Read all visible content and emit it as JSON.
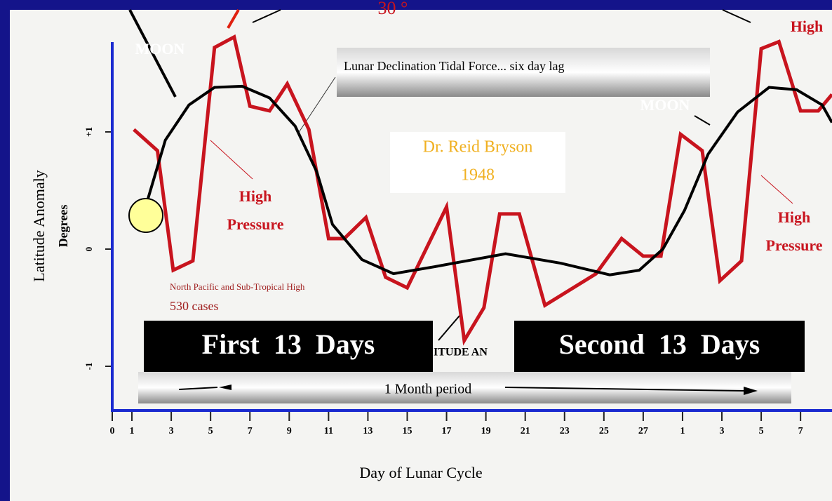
{
  "chart_data": {
    "type": "line",
    "xlabel": "Day of Lunar Cycle",
    "ylabel": "Latitude Anomaly",
    "ylabel2": "Degrees",
    "xlim": [
      0,
      36.6
    ],
    "ylim": [
      -1.4,
      1.85
    ],
    "xticks": [
      0,
      1,
      3,
      5,
      7,
      9,
      11,
      13,
      15,
      17,
      19,
      21,
      23,
      25,
      27,
      {
        "value": 29,
        "label": "1"
      },
      {
        "value": 31,
        "label": "3"
      },
      {
        "value": 33,
        "label": "5"
      },
      {
        "value": 35,
        "label": "7"
      }
    ],
    "yticks": [
      {
        "value": 1,
        "label": "+1"
      },
      0,
      {
        "value": -1,
        "label": "-1"
      }
    ],
    "series": [
      {
        "name": "North Pacific and Sub-Tropical High",
        "color": "#c8141e",
        "x": [
          1.1,
          2.3,
          3.1,
          4.1,
          5.2,
          6.2,
          7.0,
          8.0,
          8.9,
          10.0,
          11.0,
          11.8,
          12.9,
          13.9,
          15.0,
          17.0,
          17.9,
          18.9,
          19.7,
          20.7,
          22.0,
          24.6,
          25.9,
          27.0,
          27.9,
          28.9,
          30.0,
          30.9,
          32.0,
          33.0,
          33.9,
          35.0,
          35.9,
          36.6
        ],
        "values": [
          1.02,
          0.84,
          -0.18,
          -0.1,
          1.72,
          1.81,
          1.22,
          1.18,
          1.41,
          1.02,
          0.09,
          0.09,
          0.27,
          -0.24,
          -0.33,
          0.36,
          -0.78,
          -0.5,
          0.3,
          0.3,
          -0.48,
          -0.21,
          0.09,
          -0.06,
          -0.06,
          0.98,
          0.84,
          -0.27,
          -0.1,
          1.71,
          1.77,
          1.18,
          1.18,
          1.32
        ]
      },
      {
        "name": "Lunar Declination Tidal Force... six day lag",
        "color": "#000000",
        "x": [
          1.8,
          2.7,
          3.9,
          5.2,
          6.6,
          8.0,
          9.3,
          10.4,
          11.2,
          12.7,
          14.3,
          16.4,
          20.0,
          22.8,
          25.3,
          26.8,
          28.0,
          29.1,
          30.3,
          31.8,
          33.4,
          34.8,
          36.1,
          36.6
        ],
        "values": [
          0.42,
          0.93,
          1.23,
          1.38,
          1.39,
          1.29,
          1.05,
          0.66,
          0.21,
          -0.09,
          -0.21,
          -0.15,
          -0.04,
          -0.12,
          -0.22,
          -0.18,
          0,
          0.33,
          0.81,
          1.17,
          1.38,
          1.36,
          1.23,
          1.08
        ]
      }
    ],
    "annotations": [
      "30 °",
      "High",
      "MOON",
      "MOON",
      "Dr. Reid Bryson",
      "1948",
      "High",
      "Pressure",
      "High",
      "Pressure",
      "530 cases",
      "First  13  Days",
      "Second  13  Days",
      "ITUDE AN",
      "1 Month period"
    ]
  }
}
